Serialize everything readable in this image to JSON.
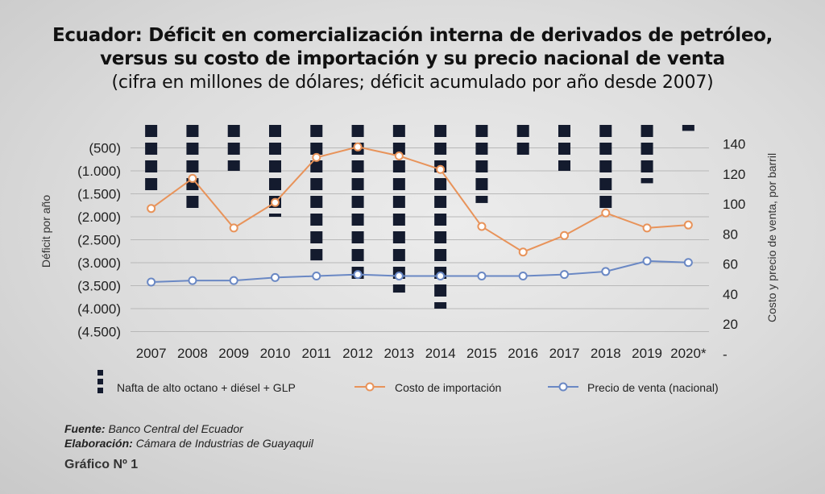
{
  "chart_data": {
    "type": "bar",
    "title": "Ecuador: Déficit en comercialización interna de derivados de petróleo,",
    "title_line2": "versus su costo de importación y su precio nacional de venta",
    "subtitle": "(cifra en millones de dólares; déficit acumulado por año desde 2007)",
    "categories": [
      "2007",
      "2008",
      "2009",
      "2010",
      "2011",
      "2012",
      "2013",
      "2014",
      "2015",
      "2016",
      "2017",
      "2018",
      "2019",
      "2020*"
    ],
    "ylabel_left": "Déficit por año",
    "ylabel_right": "Costo y precio de venta, por barril",
    "left_ticks": [
      "(500)",
      "(1.000)",
      "(1.500)",
      "(2.000)",
      "(2.500)",
      "(3.000)",
      "(3.500)",
      "(4.000)",
      "(4.500)"
    ],
    "right_ticks": [
      "140",
      "120",
      "100",
      "80",
      "60",
      "40",
      "20",
      "-"
    ],
    "left_ylim": [
      0,
      -4500
    ],
    "right_ylim": [
      0,
      160
    ],
    "series": [
      {
        "name": "Nafta de alto octano + diésel + GLP",
        "type": "bar",
        "axis": "left",
        "color": "#141b2e",
        "values": [
          -1450,
          -1850,
          -1000,
          -2000,
          -2950,
          -3450,
          -3650,
          -4000,
          -1700,
          -650,
          -1000,
          -1850,
          -1270,
          -130
        ]
      },
      {
        "name": "Costo de importación",
        "type": "line",
        "axis": "right",
        "color": "#e8935a",
        "values": [
          97,
          117,
          84,
          101,
          131,
          138,
          132,
          123,
          85,
          68,
          79,
          94,
          84,
          86
        ]
      },
      {
        "name": "Precio de venta (nacional)",
        "type": "line",
        "axis": "right",
        "color": "#6a88c4",
        "values": [
          48,
          49,
          49,
          51,
          52,
          53,
          52,
          52,
          52,
          52,
          53,
          55,
          62,
          61
        ]
      }
    ],
    "legend_position": "bottom",
    "grid": true
  },
  "footer": {
    "source_label": "Fuente:",
    "source_text": "Banco Central del Ecuador",
    "credit_label": "Elaboración:",
    "credit_text": "Cámara de Industrias de Guayaquil",
    "figure_label": "Gráfico Nº 1"
  }
}
